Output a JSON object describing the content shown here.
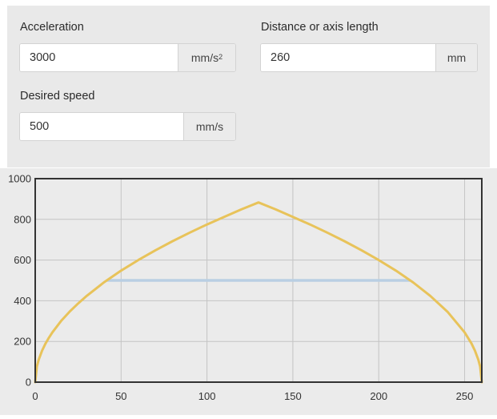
{
  "form": {
    "acceleration": {
      "label": "Acceleration",
      "value": "3000",
      "unit_base": "mm/s",
      "unit_exp": "2"
    },
    "distance": {
      "label": "Distance or axis length",
      "value": "260",
      "unit": "mm"
    },
    "speed": {
      "label": "Desired speed",
      "value": "500",
      "unit": "mm/s"
    }
  },
  "colors": {
    "profile": "#e8c35a",
    "desired_speed": "#b9cfe3",
    "frame": "#333333",
    "grid": "#c4c4c4"
  },
  "chart_data": {
    "type": "line",
    "xlim": [
      0,
      260
    ],
    "ylim": [
      0,
      1000
    ],
    "xticks": [
      "0",
      "50",
      "100",
      "150",
      "200",
      "250"
    ],
    "yticks": [
      "0",
      "200",
      "400",
      "600",
      "800",
      "1000"
    ],
    "grid": true,
    "series": [
      {
        "color": "#e8c35a",
        "x": [
          0,
          1,
          2,
          4,
          6,
          8,
          10,
          15,
          20,
          25,
          30,
          40,
          50,
          60,
          70,
          80,
          90,
          100,
          110,
          120,
          130,
          140,
          150,
          160,
          170,
          180,
          190,
          200,
          210,
          220,
          230,
          240,
          250,
          254,
          256,
          258,
          259,
          260
        ],
        "y": [
          0,
          77,
          110,
          155,
          190,
          219,
          245,
          300,
          346,
          387,
          424,
          490,
          548,
          600,
          648,
          693,
          735,
          775,
          812,
          849,
          883,
          849,
          812,
          775,
          735,
          693,
          648,
          600,
          548,
          490,
          424,
          346,
          245,
          190,
          155,
          110,
          77,
          0
        ]
      },
      {
        "color": "#b9cfe3",
        "x": [
          42,
          218
        ],
        "y": [
          500,
          500
        ]
      }
    ]
  }
}
